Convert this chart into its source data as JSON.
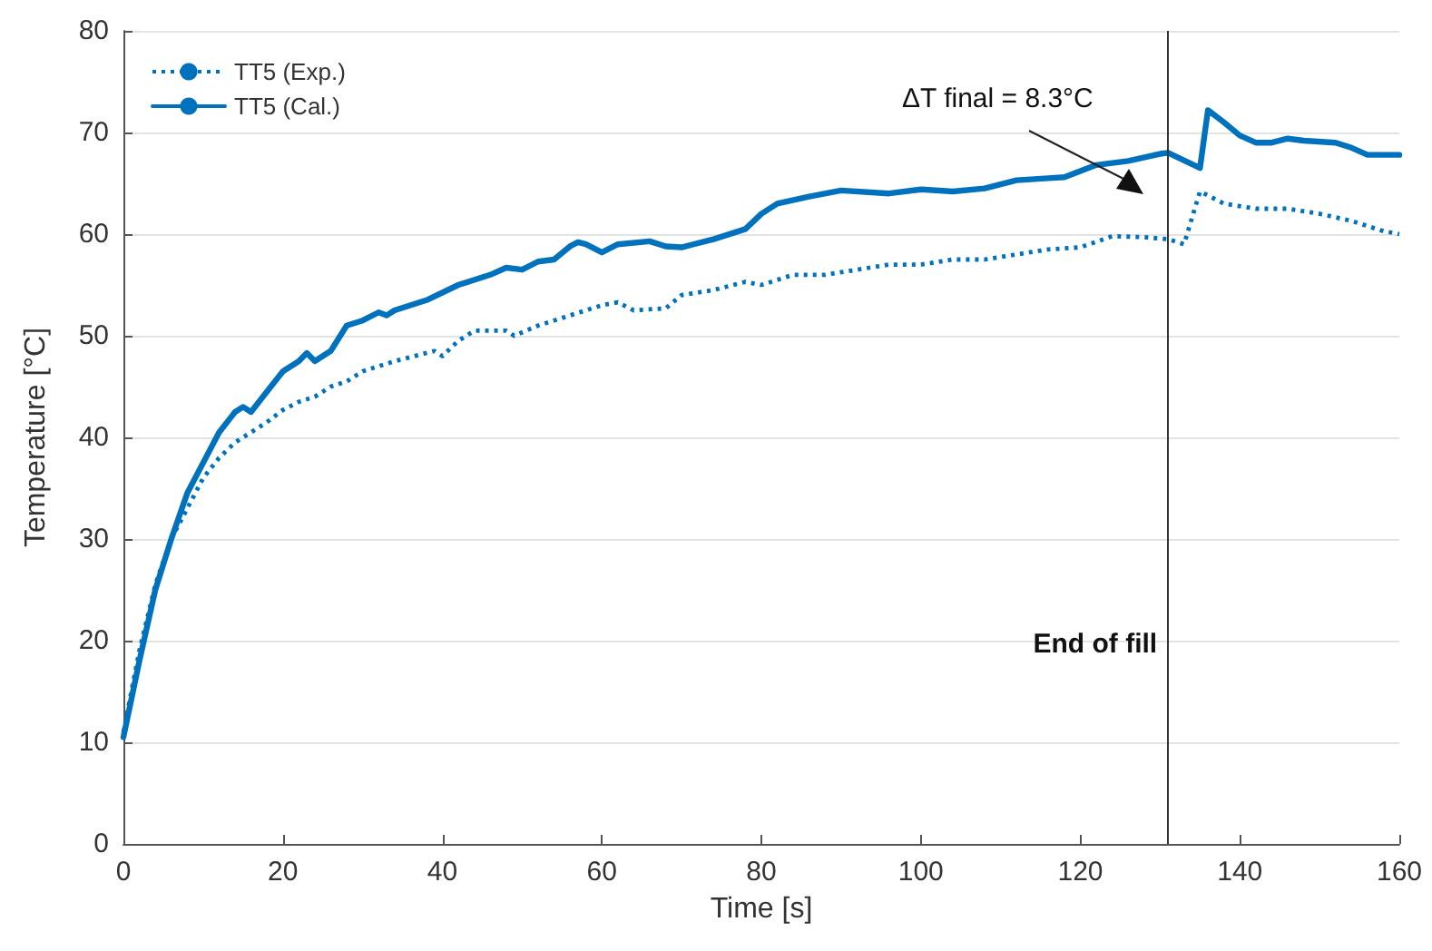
{
  "chart_data": {
    "type": "line",
    "xlabel": "Time [s]",
    "ylabel": "Temperature [°C]",
    "xlim": [
      0,
      160
    ],
    "xticks": [
      0,
      20,
      40,
      60,
      80,
      100,
      120,
      140,
      160
    ],
    "ylim": [
      0,
      80
    ],
    "yticks": [
      0,
      10,
      20,
      30,
      40,
      50,
      60,
      70,
      80
    ],
    "grid": "y",
    "legend": "top left",
    "marker": "none",
    "series": [
      {
        "name": "TT5 (Exp.)",
        "color": "#0072bd",
        "line_style": "dotted",
        "x": [
          0,
          2,
          4,
          6,
          8,
          10,
          12,
          14,
          16,
          18,
          20,
          22,
          24,
          26,
          28,
          30,
          34,
          38,
          39,
          40,
          42,
          44,
          48,
          49,
          52,
          56,
          60,
          62,
          64,
          68,
          70,
          74,
          78,
          80,
          84,
          88,
          92,
          96,
          100,
          104,
          108,
          112,
          116,
          120,
          124,
          128,
          131,
          133,
          135,
          138,
          142,
          146,
          150,
          154,
          158,
          160
        ],
        "values": [
          11,
          19,
          25.5,
          30,
          33,
          36,
          38,
          39.5,
          40.5,
          41.5,
          42.7,
          43.5,
          44,
          45,
          45.5,
          46.5,
          47.5,
          48.3,
          48.5,
          48,
          49.5,
          50.5,
          50.5,
          50,
          51,
          52,
          53,
          53.3,
          52.5,
          52.7,
          54,
          54.5,
          55.3,
          55,
          56,
          56,
          56.5,
          57,
          57,
          57.5,
          57.5,
          58,
          58.5,
          58.7,
          59.8,
          59.7,
          59.5,
          59,
          64.2,
          63,
          62.5,
          62.5,
          62,
          61.3,
          60.3,
          60
        ]
      },
      {
        "name": "TT5 (Cal.)",
        "color": "#0072bd",
        "line_style": "solid",
        "x": [
          0,
          2,
          4,
          6,
          8,
          10,
          12,
          14,
          15,
          16,
          18,
          20,
          22,
          23,
          24,
          26,
          28,
          30,
          32,
          33,
          34,
          38,
          42,
          46,
          48,
          50,
          52,
          54,
          56,
          57,
          58,
          60,
          62,
          66,
          68,
          70,
          74,
          78,
          80,
          82,
          86,
          90,
          96,
          100,
          104,
          108,
          112,
          116,
          118,
          122,
          126,
          130,
          131,
          135,
          136,
          138,
          140,
          142,
          144,
          146,
          148,
          152,
          154,
          156,
          160
        ],
        "values": [
          10.5,
          18,
          25,
          30,
          34.5,
          37.5,
          40.5,
          42.5,
          43,
          42.5,
          44.5,
          46.5,
          47.5,
          48.3,
          47.5,
          48.5,
          51,
          51.5,
          52.3,
          52,
          52.5,
          53.5,
          55,
          56,
          56.7,
          56.5,
          57.3,
          57.5,
          58.8,
          59.2,
          59,
          58.2,
          59,
          59.3,
          58.8,
          58.7,
          59.5,
          60.5,
          62,
          63,
          63.7,
          64.3,
          64,
          64.4,
          64.2,
          64.5,
          65.3,
          65.5,
          65.6,
          66.8,
          67.2,
          67.9,
          68,
          66.5,
          72.2,
          71,
          69.7,
          69,
          69,
          69.4,
          69.2,
          69,
          68.5,
          67.8,
          67.8
        ]
      }
    ],
    "ref_lines": [
      {
        "axis": "x",
        "value": 131,
        "label": "End of fill",
        "color": "#333333"
      }
    ],
    "annotations": [
      "ΔT final = 8.3°C"
    ]
  }
}
